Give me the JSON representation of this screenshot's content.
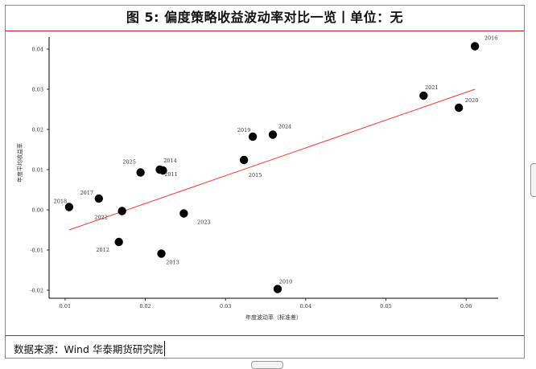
{
  "title": "图 5: 偏度策略收益波动率对比一览丨单位：无",
  "source": "数据来源：Wind 华泰期货研究院",
  "chart_data": {
    "type": "scatter",
    "xlabel": "年度波动率（标准差）",
    "ylabel": "年度平均收益率",
    "xlim": [
      0.008,
      0.064
    ],
    "ylim": [
      -0.022,
      0.043
    ],
    "xticks": [
      0.01,
      0.02,
      0.03,
      0.04,
      0.05,
      0.06
    ],
    "yticks": [
      -0.02,
      -0.01,
      0.0,
      0.01,
      0.02,
      0.03,
      0.04
    ],
    "xtick_labels": [
      "0.01",
      "0.02",
      "0.03",
      "0.04",
      "0.05",
      "0.06"
    ],
    "ytick_labels": [
      "-0.02",
      "-0.01",
      "0.00",
      "0.01",
      "0.02",
      "0.03",
      "0.04"
    ],
    "point_color": "#000000",
    "trend_color": "#ff3333",
    "points": [
      {
        "label": "2010",
        "x": 0.0365,
        "y": -0.0197
      },
      {
        "label": "2011",
        "x": 0.0222,
        "y": 0.0098
      },
      {
        "label": "2012",
        "x": 0.0167,
        "y": -0.008
      },
      {
        "label": "2013",
        "x": 0.022,
        "y": -0.0109
      },
      {
        "label": "2014",
        "x": 0.0218,
        "y": 0.01
      },
      {
        "label": "2015",
        "x": 0.0323,
        "y": 0.0124
      },
      {
        "label": "2016",
        "x": 0.0611,
        "y": 0.0407
      },
      {
        "label": "2017",
        "x": 0.0142,
        "y": 0.0028
      },
      {
        "label": "2018",
        "x": 0.0105,
        "y": 0.0007
      },
      {
        "label": "2019",
        "x": 0.0334,
        "y": 0.0182
      },
      {
        "label": "2020",
        "x": 0.0591,
        "y": 0.0254
      },
      {
        "label": "2021",
        "x": 0.0547,
        "y": 0.0284
      },
      {
        "label": "2022",
        "x": 0.0171,
        "y": -0.0003
      },
      {
        "label": "2023",
        "x": 0.0248,
        "y": -0.0009
      },
      {
        "label": "2024",
        "x": 0.0359,
        "y": 0.0187
      },
      {
        "label": "2025",
        "x": 0.0194,
        "y": 0.0093
      }
    ],
    "trend_line": {
      "x": [
        0.0105,
        0.0611
      ],
      "y": [
        -0.005,
        0.03
      ]
    }
  }
}
